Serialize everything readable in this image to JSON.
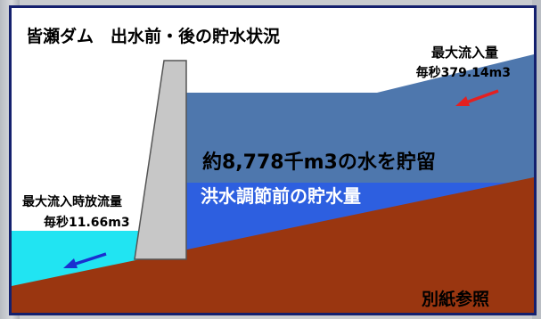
{
  "title": "皆瀬ダム　出水前・後の貯水状況",
  "inflow": {
    "label": "最大流入量",
    "value": "毎秒379.14m3"
  },
  "storage_text": "約8,778千m3の水を貯留",
  "pre_storage_text": "洪水調節前の貯水量",
  "outflow": {
    "label": "最大流入時放流量",
    "value": "毎秒11.66m3"
  },
  "reference": "別紙参照",
  "colors": {
    "frame": "#14206e",
    "upper_water": "#4e77ad",
    "lower_water": "#2d5fe0",
    "ground": "#9a3610",
    "downstream_water": "#21e4f2",
    "dam": "#c7c7c7",
    "arrow_in": "#e42020",
    "arrow_out": "#1a2fd0",
    "storage_text": "#000000",
    "pre_storage_text": "#ffffff"
  }
}
